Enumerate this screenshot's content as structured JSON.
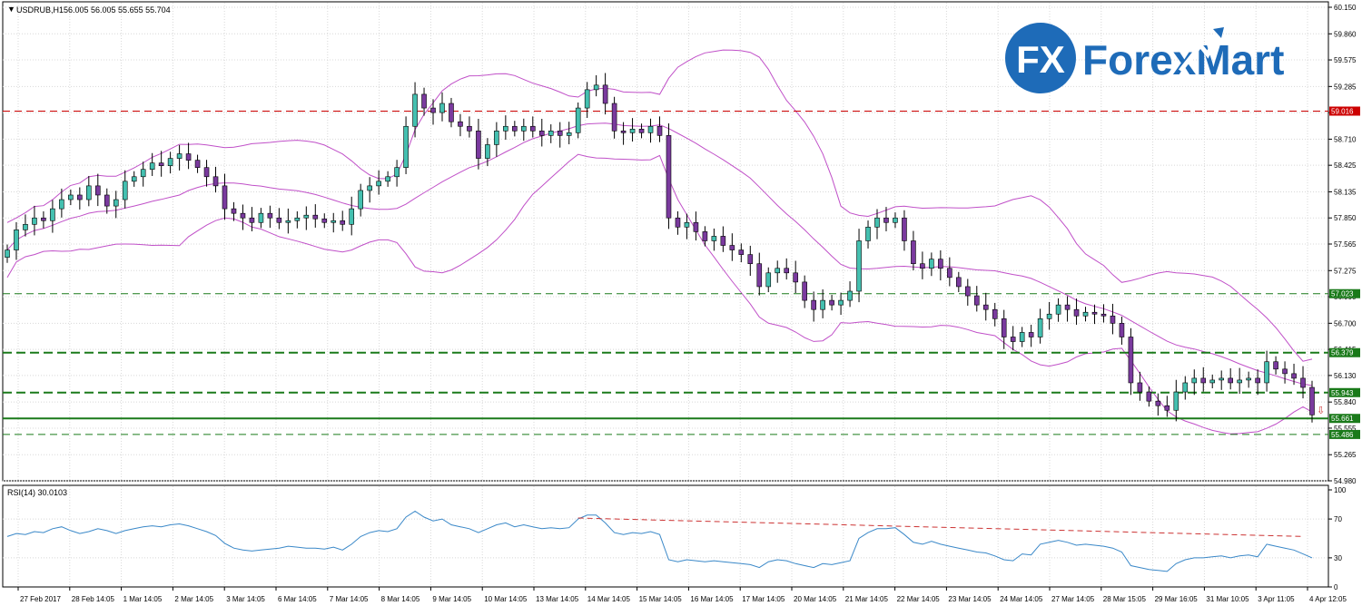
{
  "header": {
    "symbol_title": "USDRUB,H1",
    "ohlc": "56.005 56.005 55.655 55.704",
    "rsi_title": "RSI(14) 30.0103"
  },
  "logo": {
    "mark": "FX",
    "text": "ForexMart"
  },
  "chart_data": {
    "type": "candlestick",
    "price_axis": {
      "ticks": [
        "60.150",
        "59.860",
        "59.575",
        "59.285",
        "59.000",
        "58.710",
        "58.425",
        "58.135",
        "57.850",
        "57.565",
        "57.275",
        "56.990",
        "56.700",
        "56.415",
        "56.130",
        "55.840",
        "55.555",
        "55.265",
        "54.980"
      ],
      "ylim": [
        54.98,
        60.15
      ]
    },
    "levels": [
      {
        "value": 59.016,
        "label": "59.016",
        "color": "#cc0000",
        "style": "dashed"
      },
      {
        "value": 57.023,
        "label": "57.023",
        "color": "#1a7a1a",
        "style": "dashed"
      },
      {
        "value": 56.379,
        "label": "56.379",
        "color": "#1a7a1a",
        "style": "dashed-bold"
      },
      {
        "value": 55.943,
        "label": "55.943",
        "color": "#1a7a1a",
        "style": "dashed-bold"
      },
      {
        "value": 55.661,
        "label": "55.661",
        "color": "#1a7a1a",
        "style": "solid-bold"
      },
      {
        "value": 55.486,
        "label": "55.486",
        "color": "#1a7a1a",
        "style": "dashed"
      }
    ],
    "close": [
      57.5,
      57.72,
      57.78,
      57.85,
      57.82,
      57.95,
      58.05,
      58.1,
      58.05,
      58.2,
      58.1,
      57.98,
      58.05,
      58.25,
      58.3,
      58.38,
      58.45,
      58.42,
      58.5,
      58.55,
      58.48,
      58.4,
      58.3,
      58.2,
      57.95,
      57.9,
      57.85,
      57.8,
      57.9,
      57.85,
      57.8,
      57.82,
      57.85,
      57.88,
      57.84,
      57.8,
      57.82,
      57.78,
      57.95,
      58.15,
      58.2,
      58.25,
      58.3,
      58.4,
      58.85,
      59.2,
      59.05,
      59.0,
      59.1,
      58.9,
      58.85,
      58.8,
      58.5,
      58.65,
      58.8,
      58.85,
      58.8,
      58.85,
      58.8,
      58.75,
      58.8,
      58.75,
      58.78,
      59.05,
      59.25,
      59.3,
      59.1,
      58.8,
      58.78,
      58.82,
      58.78,
      58.85,
      58.75,
      57.85,
      57.75,
      57.8,
      57.7,
      57.6,
      57.65,
      57.55,
      57.5,
      57.45,
      57.35,
      57.1,
      57.25,
      57.3,
      57.25,
      57.15,
      56.95,
      56.85,
      56.95,
      56.9,
      56.95,
      57.05,
      57.6,
      57.75,
      57.85,
      57.8,
      57.85,
      57.6,
      57.35,
      57.3,
      57.4,
      57.3,
      57.2,
      57.1,
      57.0,
      56.9,
      56.85,
      56.75,
      56.55,
      56.5,
      56.6,
      56.55,
      56.75,
      56.8,
      56.9,
      56.85,
      56.78,
      56.82,
      56.8,
      56.78,
      56.7,
      56.55,
      56.05,
      55.95,
      55.85,
      55.8,
      55.75,
      55.95,
      56.05,
      56.1,
      56.05,
      56.08,
      56.1,
      56.05,
      56.08,
      56.1,
      56.05,
      56.28,
      56.2,
      56.15,
      56.1,
      56.0,
      55.7
    ],
    "x_labels": [
      "27 Feb 2017",
      "28 Feb 14:05",
      "1 Mar 14:05",
      "2 Mar 14:05",
      "3 Mar 14:05",
      "6 Mar 14:05",
      "7 Mar 14:05",
      "8 Mar 14:05",
      "9 Mar 14:05",
      "10 Mar 14:05",
      "13 Mar 14:05",
      "14 Mar 14:05",
      "15 Mar 14:05",
      "16 Mar 14:05",
      "17 Mar 14:05",
      "20 Mar 14:05",
      "21 Mar 14:05",
      "22 Mar 14:05",
      "23 Mar 14:05",
      "24 Mar 14:05",
      "27 Mar 14:05",
      "28 Mar 15:05",
      "29 Mar 16:05",
      "31 Mar 10:05",
      "3 Apr 11:05",
      "4 Apr 12:05"
    ],
    "indicators": [
      "Bollinger Bands (upper, middle, lower)"
    ],
    "rsi": {
      "ticks": [
        "100",
        "70",
        "30",
        "0"
      ],
      "ylim": [
        0,
        100
      ],
      "values": [
        52,
        55,
        54,
        57,
        56,
        60,
        62,
        58,
        55,
        57,
        60,
        58,
        55,
        58,
        60,
        62,
        63,
        62,
        64,
        65,
        63,
        60,
        57,
        53,
        45,
        40,
        38,
        37,
        38,
        39,
        40,
        42,
        41,
        40,
        40,
        39,
        41,
        38,
        44,
        52,
        56,
        58,
        57,
        60,
        72,
        78,
        72,
        68,
        70,
        64,
        62,
        60,
        56,
        60,
        64,
        66,
        62,
        64,
        62,
        60,
        61,
        60,
        61,
        70,
        74,
        74,
        66,
        56,
        54,
        56,
        55,
        57,
        54,
        28,
        26,
        28,
        27,
        26,
        27,
        26,
        25,
        24,
        23,
        20,
        26,
        28,
        27,
        24,
        22,
        20,
        24,
        23,
        25,
        27,
        50,
        56,
        60,
        60,
        61,
        54,
        46,
        44,
        47,
        44,
        42,
        40,
        38,
        36,
        35,
        32,
        28,
        27,
        34,
        33,
        44,
        46,
        48,
        46,
        43,
        44,
        43,
        42,
        40,
        36,
        22,
        20,
        18,
        17,
        16,
        24,
        28,
        30,
        30,
        31,
        32,
        30,
        32,
        33,
        31,
        44,
        42,
        40,
        38,
        34,
        30
      ],
      "trendline": [
        [
          63,
          71
        ],
        [
          143,
          52
        ]
      ]
    }
  },
  "colors": {
    "bull": "#44c0b0",
    "bear": "#7a3a9e",
    "band": "#c050c8",
    "rsi": "#3a88c8",
    "trend": "#cc3333",
    "logo_blue": "#1e6bb8"
  }
}
